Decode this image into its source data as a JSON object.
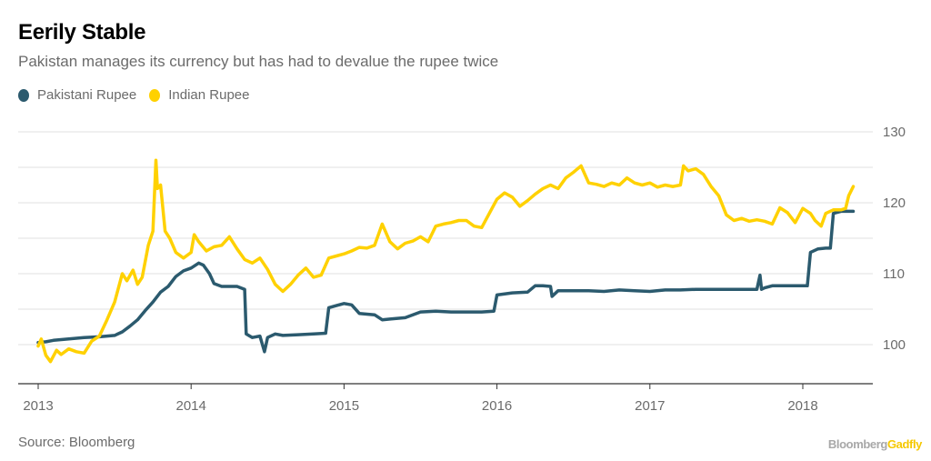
{
  "header": {
    "title": "Eerily Stable",
    "subtitle": "Pakistan manages its currency but has had to devalue the rupee twice"
  },
  "legend": [
    {
      "label": "Pakistani Rupee",
      "color": "#2b5a6e"
    },
    {
      "label": "Indian Rupee",
      "color": "#ffd100"
    }
  ],
  "footer": {
    "source": "Source: Bloomberg",
    "brand_part1": "Bloomberg",
    "brand_part2": "Gadfly"
  },
  "chart_data": {
    "type": "line",
    "title": "Eerily Stable",
    "subtitle": "Pakistan manages its currency but has had to devalue the rupee twice",
    "xlabel": "",
    "ylabel": "",
    "xlim": [
      2013.0,
      2018.45
    ],
    "ylim": [
      95.5,
      131
    ],
    "grid": true,
    "y_axis_position": "right",
    "legend_position": "top-left",
    "x_ticks": [
      2013,
      2014,
      2015,
      2016,
      2017,
      2018
    ],
    "x_tick_labels": [
      "2013",
      "2014",
      "2015",
      "2016",
      "2017",
      "2018"
    ],
    "y_ticks": [
      100,
      105,
      110,
      115,
      120,
      125,
      130
    ],
    "y_tick_labels": [
      "100",
      "",
      "110",
      "",
      "120",
      "",
      "130"
    ],
    "series": [
      {
        "name": "Pakistani Rupee",
        "color": "#2b5a6e",
        "x": [
          2013.0,
          2013.05,
          2013.1,
          2013.2,
          2013.3,
          2013.4,
          2013.5,
          2013.55,
          2013.6,
          2013.65,
          2013.7,
          2013.75,
          2013.8,
          2013.85,
          2013.9,
          2013.95,
          2014.0,
          2014.05,
          2014.08,
          2014.12,
          2014.15,
          2014.2,
          2014.3,
          2014.35,
          2014.36,
          2014.4,
          2014.45,
          2014.48,
          2014.5,
          2014.55,
          2014.6,
          2014.7,
          2014.8,
          2014.88,
          2014.9,
          2014.95,
          2015.0,
          2015.05,
          2015.1,
          2015.2,
          2015.25,
          2015.3,
          2015.4,
          2015.5,
          2015.6,
          2015.7,
          2015.8,
          2015.9,
          2015.98,
          2016.0,
          2016.1,
          2016.2,
          2016.25,
          2016.3,
          2016.35,
          2016.36,
          2016.4,
          2016.5,
          2016.6,
          2016.7,
          2016.8,
          2016.9,
          2017.0,
          2017.1,
          2017.2,
          2017.3,
          2017.4,
          2017.5,
          2017.6,
          2017.7,
          2017.72,
          2017.73,
          2017.75,
          2017.8,
          2017.9,
          2018.0,
          2018.03,
          2018.05,
          2018.1,
          2018.15,
          2018.18,
          2018.2,
          2018.25,
          2018.3,
          2018.33
        ],
        "values": [
          100.3,
          100.4,
          100.6,
          100.8,
          101.0,
          101.1,
          101.3,
          101.8,
          102.6,
          103.5,
          104.8,
          106.0,
          107.4,
          108.2,
          109.6,
          110.4,
          110.8,
          111.5,
          111.2,
          110.0,
          108.6,
          108.2,
          108.2,
          107.8,
          101.5,
          101.0,
          101.2,
          99.0,
          101.0,
          101.5,
          101.3,
          101.4,
          101.5,
          101.6,
          105.2,
          105.5,
          105.8,
          105.6,
          104.4,
          104.2,
          103.5,
          103.6,
          103.8,
          104.6,
          104.7,
          104.6,
          104.6,
          104.6,
          104.7,
          107.0,
          107.3,
          107.4,
          108.3,
          108.3,
          108.2,
          106.8,
          107.6,
          107.6,
          107.6,
          107.5,
          107.7,
          107.6,
          107.5,
          107.7,
          107.7,
          107.8,
          107.8,
          107.8,
          107.8,
          107.8,
          109.8,
          107.8,
          108.0,
          108.3,
          108.3,
          108.3,
          108.3,
          113.0,
          113.5,
          113.6,
          113.6,
          118.5,
          118.8,
          118.8,
          118.8
        ]
      },
      {
        "name": "Indian Rupee",
        "color": "#ffd100",
        "x": [
          2013.0,
          2013.02,
          2013.05,
          2013.08,
          2013.12,
          2013.15,
          2013.2,
          2013.25,
          2013.3,
          2013.35,
          2013.4,
          2013.45,
          2013.5,
          2013.55,
          2013.58,
          2013.62,
          2013.65,
          2013.68,
          2013.72,
          2013.75,
          2013.77,
          2013.78,
          2013.8,
          2013.83,
          2013.86,
          2013.9,
          2013.95,
          2014.0,
          2014.02,
          2014.05,
          2014.1,
          2014.15,
          2014.2,
          2014.25,
          2014.3,
          2014.35,
          2014.4,
          2014.45,
          2014.5,
          2014.55,
          2014.6,
          2014.65,
          2014.7,
          2014.75,
          2014.8,
          2014.85,
          2014.9,
          2014.95,
          2015.0,
          2015.05,
          2015.1,
          2015.15,
          2015.2,
          2015.25,
          2015.3,
          2015.35,
          2015.4,
          2015.45,
          2015.5,
          2015.55,
          2015.6,
          2015.65,
          2015.7,
          2015.75,
          2015.8,
          2015.85,
          2015.9,
          2015.95,
          2016.0,
          2016.05,
          2016.1,
          2016.15,
          2016.2,
          2016.25,
          2016.3,
          2016.35,
          2016.4,
          2016.45,
          2016.5,
          2016.55,
          2016.6,
          2016.65,
          2016.7,
          2016.75,
          2016.8,
          2016.85,
          2016.9,
          2016.95,
          2017.0,
          2017.05,
          2017.1,
          2017.15,
          2017.2,
          2017.22,
          2017.25,
          2017.3,
          2017.35,
          2017.4,
          2017.45,
          2017.5,
          2017.55,
          2017.6,
          2017.65,
          2017.7,
          2017.75,
          2017.8,
          2017.85,
          2017.9,
          2017.95,
          2018.0,
          2018.05,
          2018.08,
          2018.12,
          2018.15,
          2018.2,
          2018.25,
          2018.28,
          2018.3,
          2018.33
        ],
        "values": [
          99.8,
          100.8,
          98.5,
          97.6,
          99.2,
          98.6,
          99.4,
          99.0,
          98.8,
          100.5,
          101.2,
          103.5,
          106.0,
          110.0,
          109.0,
          110.5,
          108.5,
          109.5,
          114.0,
          116.0,
          126.0,
          122.0,
          122.5,
          116.0,
          115.0,
          113.0,
          112.2,
          113.0,
          115.5,
          114.5,
          113.2,
          113.8,
          114.0,
          115.2,
          113.5,
          112.0,
          111.5,
          112.2,
          110.6,
          108.5,
          107.5,
          108.5,
          109.8,
          110.8,
          109.5,
          109.8,
          112.2,
          112.5,
          112.8,
          113.2,
          113.7,
          113.6,
          114.0,
          117.0,
          114.5,
          113.5,
          114.3,
          114.6,
          115.2,
          114.5,
          116.7,
          117.0,
          117.2,
          117.5,
          117.5,
          116.7,
          116.5,
          118.5,
          120.5,
          121.4,
          120.8,
          119.5,
          120.3,
          121.2,
          122.0,
          122.5,
          122.0,
          123.5,
          124.3,
          125.2,
          122.8,
          122.6,
          122.3,
          122.8,
          122.5,
          123.5,
          122.8,
          122.5,
          122.8,
          122.2,
          122.5,
          122.3,
          122.5,
          125.2,
          124.5,
          124.8,
          124.0,
          122.3,
          121.0,
          118.3,
          117.5,
          117.8,
          117.4,
          117.6,
          117.4,
          117.0,
          119.3,
          118.6,
          117.2,
          119.2,
          118.5,
          117.5,
          116.7,
          118.5,
          119.0,
          119.0,
          119.2,
          121.0,
          122.3
        ]
      }
    ]
  }
}
